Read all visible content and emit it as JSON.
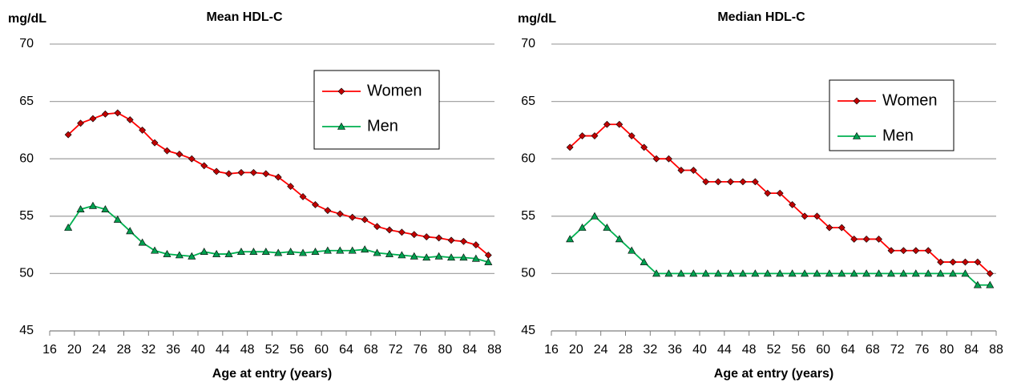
{
  "chart_data": [
    {
      "type": "line",
      "title": "Mean HDL-C",
      "y_label": "mg/dL",
      "x_label": "Age at entry (years)",
      "x": [
        19,
        21,
        23,
        25,
        27,
        29,
        31,
        33,
        35,
        37,
        39,
        41,
        43,
        45,
        47,
        49,
        51,
        53,
        55,
        57,
        59,
        61,
        63,
        65,
        67,
        69,
        71,
        73,
        75,
        77,
        79,
        81,
        83,
        85,
        87
      ],
      "series": [
        {
          "name": "Women",
          "color": "#ff0000",
          "marker": "diamond",
          "values": [
            62.1,
            63.1,
            63.5,
            63.9,
            64.0,
            63.4,
            62.5,
            61.4,
            60.7,
            60.4,
            60.0,
            59.4,
            58.9,
            58.7,
            58.8,
            58.8,
            58.7,
            58.4,
            57.6,
            56.7,
            56.0,
            55.5,
            55.2,
            54.9,
            54.7,
            54.1,
            53.8,
            53.6,
            53.4,
            53.2,
            53.1,
            52.9,
            52.8,
            52.5,
            51.6
          ]
        },
        {
          "name": "Men",
          "color": "#00b050",
          "marker": "triangle",
          "values": [
            54.0,
            55.6,
            55.9,
            55.6,
            54.7,
            53.7,
            52.7,
            52.0,
            51.7,
            51.6,
            51.5,
            51.9,
            51.7,
            51.7,
            51.9,
            51.9,
            51.9,
            51.8,
            51.9,
            51.8,
            51.9,
            52.0,
            52.0,
            52.0,
            52.1,
            51.8,
            51.7,
            51.6,
            51.5,
            51.4,
            51.5,
            51.4,
            51.4,
            51.3,
            51.0
          ]
        }
      ],
      "xlim": [
        16,
        88
      ],
      "xticks": [
        16,
        20,
        24,
        28,
        32,
        36,
        40,
        44,
        48,
        52,
        56,
        60,
        64,
        68,
        72,
        76,
        80,
        84,
        88
      ],
      "ylim": [
        45,
        70
      ],
      "yticks": [
        45,
        50,
        55,
        60,
        65,
        70
      ],
      "grid": true
    },
    {
      "type": "line",
      "title": "Median HDL-C",
      "y_label": "mg/dL",
      "x_label": "Age at entry (years)",
      "x": [
        19,
        21,
        23,
        25,
        27,
        29,
        31,
        33,
        35,
        37,
        39,
        41,
        43,
        45,
        47,
        49,
        51,
        53,
        55,
        57,
        59,
        61,
        63,
        65,
        67,
        69,
        71,
        73,
        75,
        77,
        79,
        81,
        83,
        85,
        87
      ],
      "series": [
        {
          "name": "Women",
          "color": "#ff0000",
          "marker": "diamond",
          "values": [
            61,
            62,
            62,
            63,
            63,
            62,
            61,
            60,
            60,
            59,
            59,
            58,
            58,
            58,
            58,
            58,
            57,
            57,
            56,
            55,
            55,
            54,
            54,
            53,
            53,
            53,
            52,
            52,
            52,
            52,
            51,
            51,
            51,
            51,
            50
          ]
        },
        {
          "name": "Men",
          "color": "#00b050",
          "marker": "triangle",
          "values": [
            53,
            54,
            55,
            54,
            53,
            52,
            51,
            50,
            50,
            50,
            50,
            50,
            50,
            50,
            50,
            50,
            50,
            50,
            50,
            50,
            50,
            50,
            50,
            50,
            50,
            50,
            50,
            50,
            50,
            50,
            50,
            50,
            50,
            49,
            49
          ]
        }
      ],
      "xlim": [
        16,
        88
      ],
      "xticks": [
        16,
        20,
        24,
        28,
        32,
        36,
        40,
        44,
        48,
        52,
        56,
        60,
        64,
        68,
        72,
        76,
        80,
        84,
        88
      ],
      "ylim": [
        45,
        70
      ],
      "yticks": [
        45,
        50,
        55,
        60,
        65,
        70
      ],
      "grid": true
    }
  ]
}
